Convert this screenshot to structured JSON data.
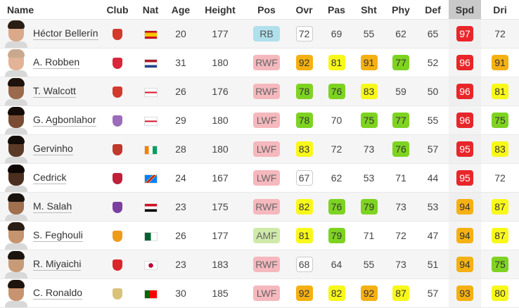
{
  "headers": {
    "name": "Name",
    "club": "Club",
    "nat": "Nat",
    "age": "Age",
    "height": "Height",
    "pos": "Pos",
    "ovr": "Ovr",
    "pas": "Pas",
    "sht": "Sht",
    "phy": "Phy",
    "def": "Def",
    "spd": "Spd",
    "dri": "Dri"
  },
  "sorted_column": "spd",
  "players": [
    {
      "name": "Héctor Bellerín",
      "age": "20",
      "height": "177",
      "pos": "RB",
      "ovr": "72",
      "pas": "69",
      "sht": "55",
      "phy": "62",
      "def": "65",
      "spd": "97",
      "dri": "72"
    },
    {
      "name": "A. Robben",
      "age": "31",
      "height": "180",
      "pos": "RWF",
      "ovr": "92",
      "pas": "81",
      "sht": "91",
      "phy": "77",
      "def": "52",
      "spd": "96",
      "dri": "91"
    },
    {
      "name": "T. Walcott",
      "age": "26",
      "height": "176",
      "pos": "RWF",
      "ovr": "78",
      "pas": "76",
      "sht": "83",
      "phy": "59",
      "def": "50",
      "spd": "96",
      "dri": "81"
    },
    {
      "name": "G. Agbonlahor",
      "age": "29",
      "height": "180",
      "pos": "LWF",
      "ovr": "78",
      "pas": "70",
      "sht": "75",
      "phy": "77",
      "def": "55",
      "spd": "96",
      "dri": "75"
    },
    {
      "name": "Gervinho",
      "age": "28",
      "height": "180",
      "pos": "LWF",
      "ovr": "83",
      "pas": "72",
      "sht": "73",
      "phy": "76",
      "def": "57",
      "spd": "95",
      "dri": "83"
    },
    {
      "name": "Cedrick",
      "age": "24",
      "height": "167",
      "pos": "LWF",
      "ovr": "67",
      "pas": "62",
      "sht": "53",
      "phy": "71",
      "def": "44",
      "spd": "95",
      "dri": "72"
    },
    {
      "name": "M. Salah",
      "age": "23",
      "height": "175",
      "pos": "RWF",
      "ovr": "82",
      "pas": "76",
      "sht": "79",
      "phy": "73",
      "def": "53",
      "spd": "94",
      "dri": "87"
    },
    {
      "name": "S. Feghouli",
      "age": "26",
      "height": "177",
      "pos": "AMF",
      "ovr": "81",
      "pas": "79",
      "sht": "71",
      "phy": "72",
      "def": "47",
      "spd": "94",
      "dri": "87"
    },
    {
      "name": "R. Miyaichi",
      "age": "23",
      "height": "183",
      "pos": "RWF",
      "ovr": "68",
      "pas": "64",
      "sht": "55",
      "phy": "73",
      "def": "51",
      "spd": "94",
      "dri": "75"
    },
    {
      "name": "C. Ronaldo",
      "age": "30",
      "height": "185",
      "pos": "LWF",
      "ovr": "92",
      "pas": "82",
      "sht": "92",
      "phy": "87",
      "def": "57",
      "spd": "93",
      "dri": "80"
    }
  ],
  "colors": {
    "stat_red": "#e8262a",
    "stat_orange": "#f5b112",
    "stat_yellow": "#f8f81a",
    "stat_green": "#7ed321",
    "pos_back": "#b0e0ec",
    "pos_forward": "#f5b8bd",
    "pos_midfield": "#cfeaa9"
  }
}
